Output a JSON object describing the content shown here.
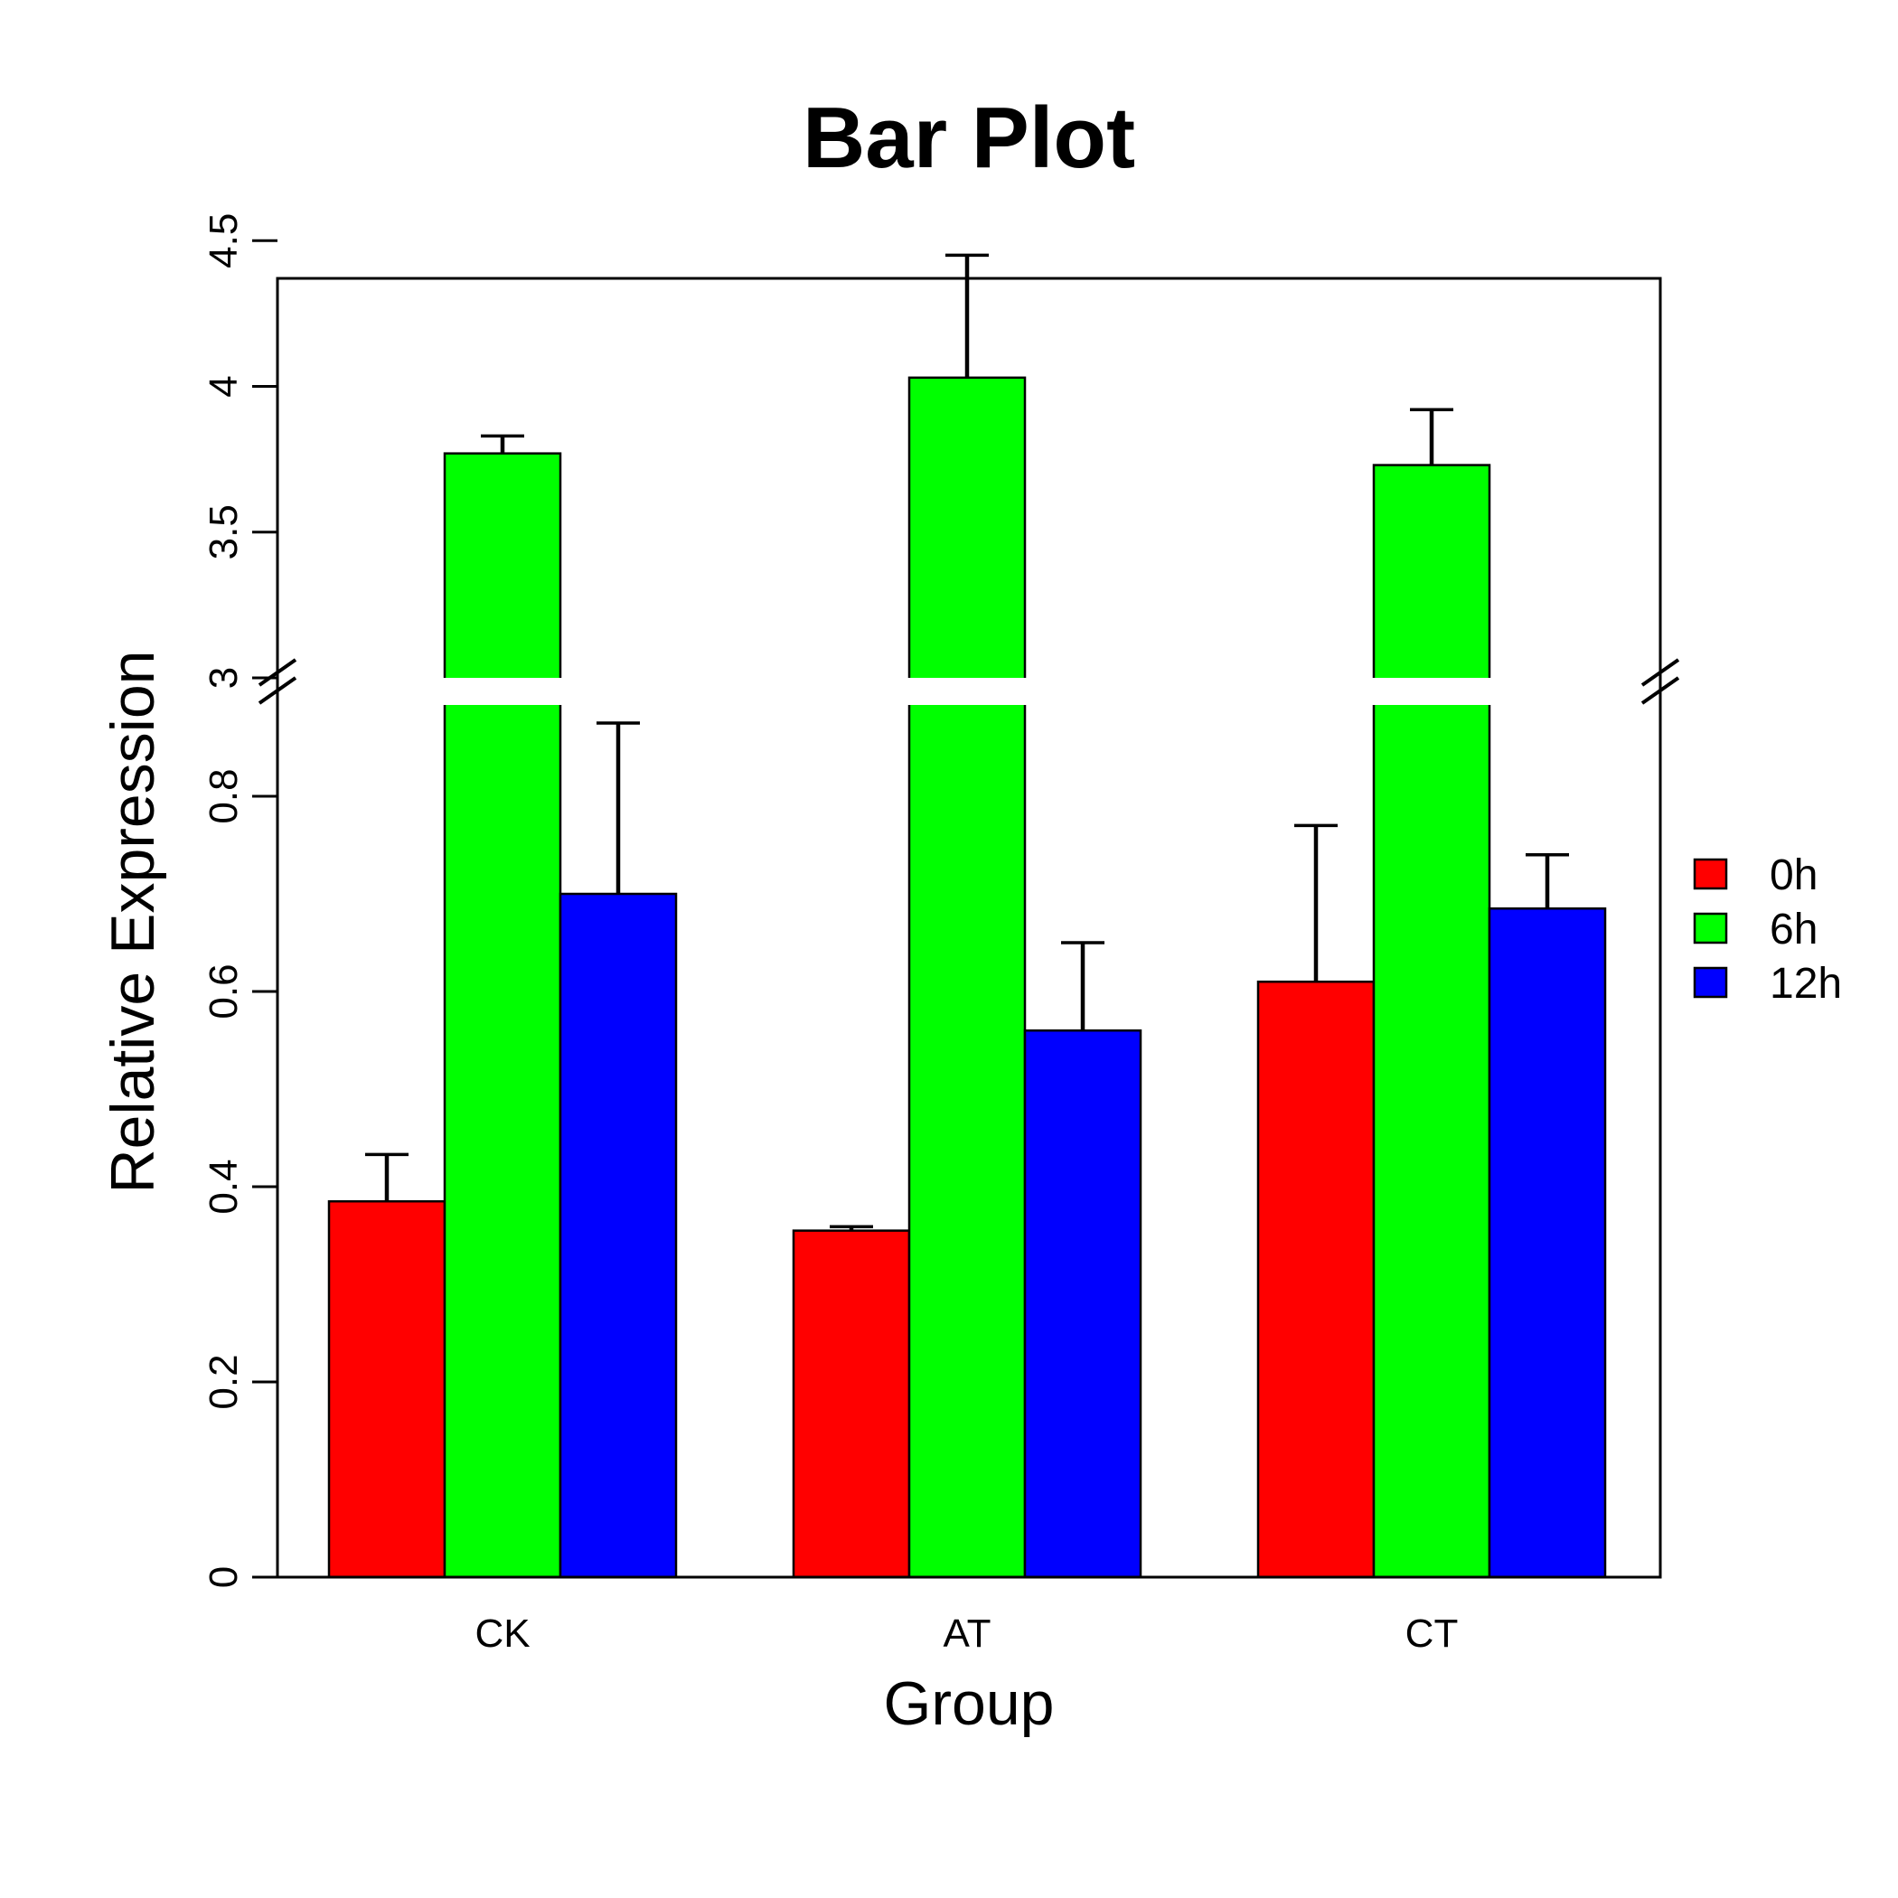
{
  "chart_data": {
    "type": "bar",
    "title": "Bar Plot",
    "xlabel": "Group",
    "ylabel": "Relative Expression",
    "categories": [
      "CK",
      "AT",
      "CT"
    ],
    "series": [
      {
        "name": "0h",
        "color": "#ff0000",
        "values": [
          0.385,
          0.355,
          0.61
        ],
        "errors": [
          0.048,
          0.004,
          0.16
        ]
      },
      {
        "name": "6h",
        "color": "#00ff00",
        "values": [
          3.77,
          4.03,
          3.73
        ],
        "errors": [
          0.06,
          0.42,
          0.19
        ]
      },
      {
        "name": "12h",
        "color": "#0000ff",
        "values": [
          0.7,
          0.56,
          0.685
        ],
        "errors": [
          0.175,
          0.09,
          0.055
        ]
      }
    ],
    "axis_break": {
      "lower_range": [
        0,
        0.9
      ],
      "upper_range": [
        3,
        4.6
      ]
    },
    "lower_ticks": [
      "0",
      "0.2",
      "0.4",
      "0.6",
      "0.8"
    ],
    "upper_ticks": [
      "3",
      "3.5",
      "4",
      "4.5"
    ],
    "legend_position": "right",
    "grid": false
  }
}
